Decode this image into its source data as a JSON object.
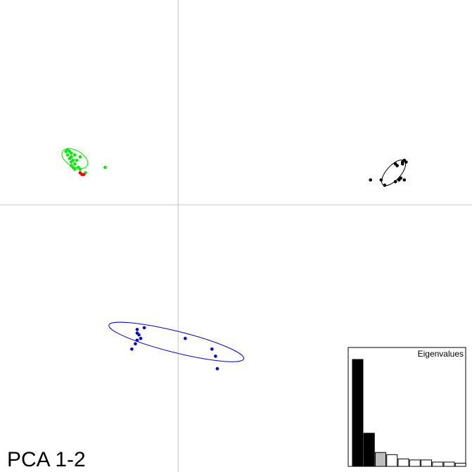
{
  "chart_data": {
    "type": "scatter",
    "title": "",
    "xlabel": "",
    "ylabel": "",
    "xlim": [
      -1.0,
      1.65
    ],
    "ylim": [
      -1.5,
      1.15
    ],
    "grid": false,
    "label": "PCA 1-2",
    "series": [
      {
        "color": "#00ee00",
        "points": [
          [
            -0.62,
            0.31
          ],
          [
            -0.63,
            0.3
          ],
          [
            -0.61,
            0.3
          ],
          [
            -0.6,
            0.29
          ],
          [
            -0.62,
            0.28
          ],
          [
            -0.6,
            0.27
          ],
          [
            -0.58,
            0.28
          ],
          [
            -0.61,
            0.26
          ],
          [
            -0.59,
            0.25
          ],
          [
            -0.57,
            0.25
          ],
          [
            -0.55,
            0.27
          ],
          [
            -0.6,
            0.22
          ],
          [
            -0.59,
            0.21
          ],
          [
            -0.58,
            0.2
          ],
          [
            -0.56,
            0.21
          ],
          [
            -0.55,
            0.2
          ],
          [
            -0.52,
            0.18
          ],
          [
            -0.41,
            0.21
          ],
          [
            -0.6,
            0.24
          ],
          [
            -0.58,
            0.23
          ]
        ],
        "ellipse": {
          "cx": -0.58,
          "cy": 0.26,
          "rx": 0.08,
          "ry": 0.045,
          "angle": 30
        }
      },
      {
        "color": "#ff0000",
        "points": [
          [
            -0.55,
            0.18
          ],
          [
            -0.54,
            0.17
          ],
          [
            -0.53,
            0.17
          ]
        ],
        "ellipse": null
      },
      {
        "color": "#000000",
        "points": [
          [
            1.26,
            0.24
          ],
          [
            1.27,
            0.25
          ],
          [
            1.28,
            0.24
          ],
          [
            1.26,
            0.23
          ],
          [
            1.22,
            0.23
          ],
          [
            1.23,
            0.22
          ],
          [
            1.24,
            0.14
          ],
          [
            1.22,
            0.13
          ],
          [
            1.27,
            0.14
          ],
          [
            1.25,
            0.15
          ],
          [
            1.14,
            0.14
          ],
          [
            1.08,
            0.14
          ],
          [
            1.16,
            0.11
          ]
        ],
        "ellipse": {
          "cx": 1.21,
          "cy": 0.18,
          "rx": 0.09,
          "ry": 0.04,
          "angle": -48
        }
      },
      {
        "color": "#0000dd",
        "points": [
          [
            -0.19,
            -0.69
          ],
          [
            -0.23,
            -0.7
          ],
          [
            -0.23,
            -0.72
          ],
          [
            -0.22,
            -0.73
          ],
          [
            -0.21,
            -0.75
          ],
          [
            -0.23,
            -0.76
          ],
          [
            -0.24,
            -0.78
          ],
          [
            -0.26,
            -0.81
          ],
          [
            0.04,
            -0.75
          ],
          [
            0.19,
            -0.81
          ],
          [
            0.21,
            -0.85
          ],
          [
            0.22,
            -0.92
          ]
        ],
        "ellipse": {
          "cx": -0.01,
          "cy": -0.77,
          "rx": 0.39,
          "ry": 0.06,
          "angle": 14
        }
      }
    ],
    "eigenvalues": {
      "title": "Eigenvalues",
      "values": [
        100,
        31,
        13,
        11,
        7,
        6,
        6,
        4,
        4,
        3
      ],
      "colors": [
        "#000000",
        "#000000",
        "#bebebe",
        "#ffffff",
        "#ffffff",
        "#ffffff",
        "#ffffff",
        "#ffffff",
        "#ffffff",
        "#ffffff"
      ]
    }
  }
}
